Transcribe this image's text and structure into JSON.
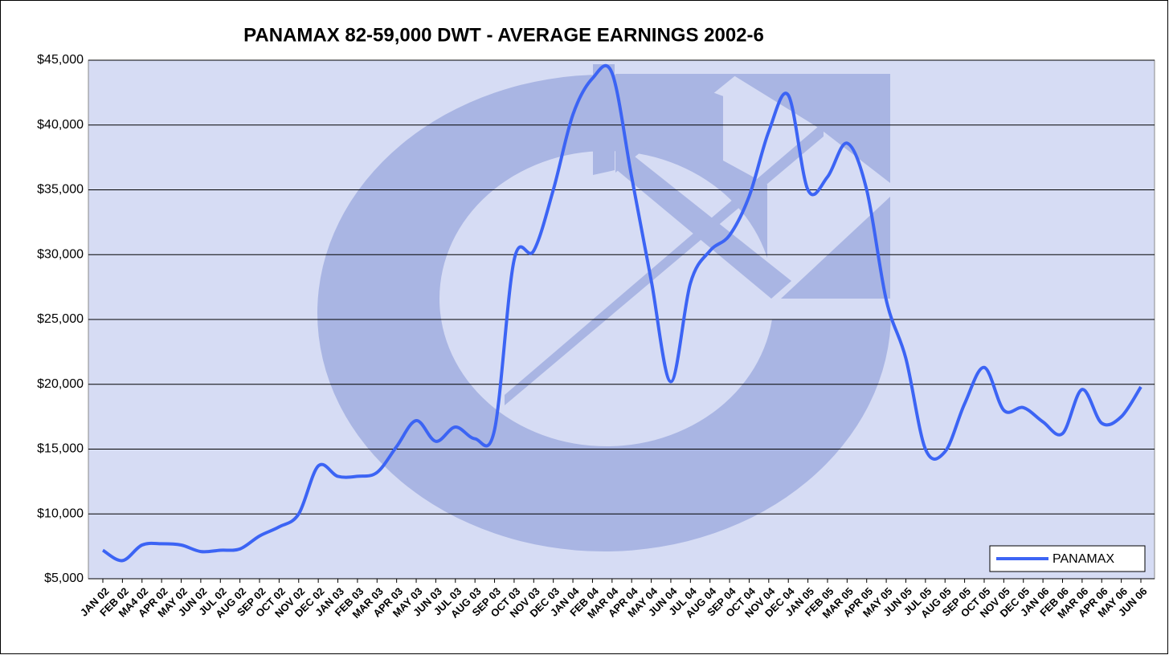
{
  "chart_data": {
    "type": "line",
    "title": "PANAMAX 82-59,000 DWT -  AVERAGE EARNINGS 2002-6",
    "categories": [
      "JAN 02",
      "FEB 02",
      "MA4 02",
      "APR 02",
      "MAY 02",
      "JUN 02",
      "JUL 02",
      "AUG 02",
      "SEP 02",
      "OCT 02",
      "NOV 02",
      "DEC 02",
      "JAN 03",
      "FEB 03",
      "MAR 03",
      "APR 03",
      "MAY 03",
      "JUN 03",
      "JUL 03",
      "AUG 03",
      "SEP 03",
      "OCT 03",
      "NOV 03",
      "DEC 03",
      "JAN 04",
      "FEB 04",
      "MAR 04",
      "APR 04",
      "MAY 04",
      "JUN 04",
      "JUL 04",
      "AUG 04",
      "SEP 04",
      "OCT 04",
      "NOV 04",
      "DEC 04",
      "JAN 05",
      "FEB 05",
      "MAR 05",
      "APR 05",
      "MAY 05",
      "JUN 05",
      "JUL 05",
      "AUG 05",
      "SEP 05",
      "OCT 05",
      "NOV 05",
      "DEC 05",
      "JAN 06",
      "FEB 06",
      "MAR 06",
      "APR 06",
      "MAY 06",
      "JUN 06"
    ],
    "series": [
      {
        "name": "PANAMAX",
        "color": "#3c64f4",
        "values": [
          7200,
          6400,
          7600,
          7700,
          7600,
          7100,
          7200,
          7300,
          8300,
          9000,
          10000,
          13700,
          12900,
          12900,
          13200,
          15200,
          17200,
          15600,
          16700,
          15800,
          16500,
          29600,
          30300,
          35000,
          40800,
          43600,
          44000,
          36000,
          28000,
          20200,
          27800,
          30300,
          31500,
          34500,
          39500,
          42300,
          35000,
          36000,
          38600,
          35000,
          26500,
          22000,
          15000,
          14800,
          18500,
          21300,
          18000,
          18200,
          17100,
          16200,
          19600,
          17000,
          17500,
          19800
        ]
      }
    ],
    "ylim": [
      5000,
      45000
    ],
    "yticks": [
      {
        "value": 5000,
        "label": "$5,000"
      },
      {
        "value": 10000,
        "label": "$10,000"
      },
      {
        "value": 15000,
        "label": "$15,000"
      },
      {
        "value": 20000,
        "label": "$20,000"
      },
      {
        "value": 25000,
        "label": "$25,000"
      },
      {
        "value": 30000,
        "label": "$30,000"
      },
      {
        "value": 35000,
        "label": "$35,000"
      },
      {
        "value": 40000,
        "label": "$40,000"
      },
      {
        "value": 45000,
        "label": "$45,000"
      }
    ],
    "grid": true,
    "legend": "lower right"
  }
}
